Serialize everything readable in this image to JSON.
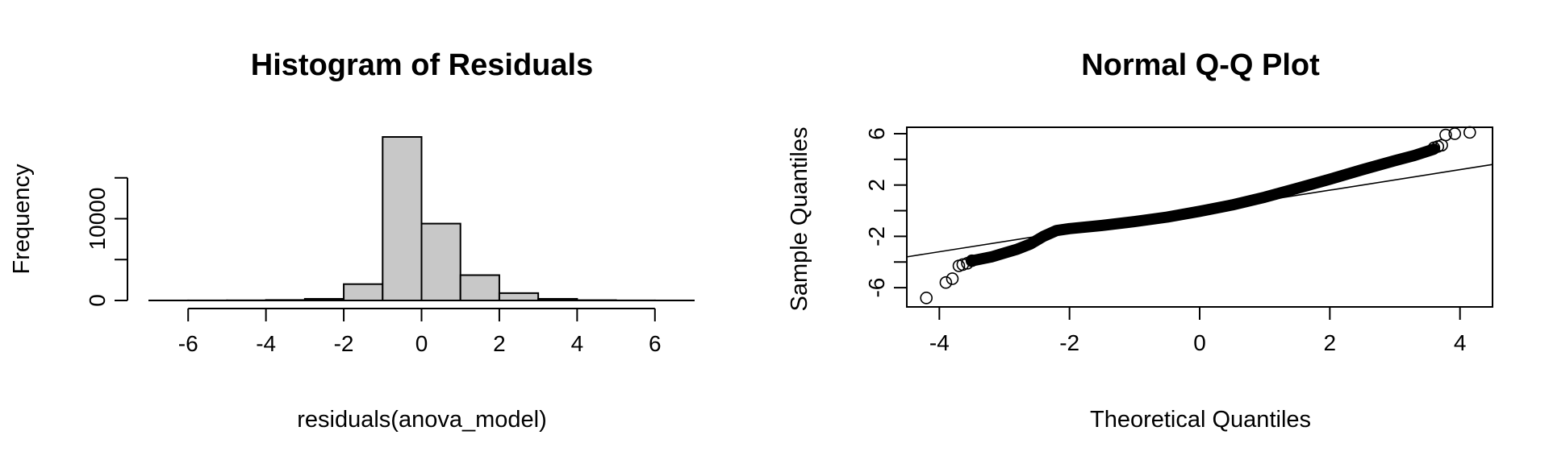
{
  "chart_data": [
    {
      "type": "bar",
      "subtype": "histogram",
      "title": "Histogram of Residuals",
      "xlabel": "residuals(anova_model)",
      "ylabel": "Frequency",
      "xlim": [
        -7,
        7
      ],
      "ylim": [
        0,
        20000
      ],
      "bin_edges": [
        -7,
        -6,
        -5,
        -4,
        -3,
        -2,
        -1,
        0,
        1,
        2,
        3,
        4,
        5,
        6,
        7
      ],
      "values": [
        5,
        10,
        20,
        60,
        200,
        2000,
        20000,
        9400,
        3100,
        900,
        200,
        40,
        10,
        5
      ],
      "x_ticks": [
        -6,
        -4,
        -2,
        0,
        2,
        4,
        6
      ],
      "x_tick_labels": [
        "-6",
        "-4",
        "-2",
        "0",
        "2",
        "4",
        "6"
      ],
      "y_ticks": [
        0,
        5000,
        10000,
        15000
      ],
      "y_tick_labels": [
        "0",
        "",
        "10000",
        ""
      ],
      "grid": false,
      "bar_color": "#c8c8c8"
    },
    {
      "type": "scatter",
      "subtype": "qq-plot",
      "title": "Normal Q-Q Plot",
      "xlabel": "Theoretical Quantiles",
      "ylabel": "Sample Quantiles",
      "xlim": [
        -4.5,
        4.5
      ],
      "ylim": [
        -7.5,
        6.5
      ],
      "x_ticks": [
        -4,
        -2,
        0,
        2,
        4
      ],
      "x_tick_labels": [
        "-4",
        "-2",
        "0",
        "2",
        "4"
      ],
      "y_ticks": [
        -6,
        -4,
        -2,
        0,
        2,
        4,
        6
      ],
      "y_tick_labels": [
        "-6",
        "",
        "-2",
        "",
        "2",
        "",
        "6"
      ],
      "reference_line": {
        "intercept": 0,
        "slope": 0.8
      },
      "curve": {
        "x": [
          -3.5,
          -3.2,
          -3.0,
          -2.8,
          -2.6,
          -2.4,
          -2.2,
          -2.0,
          -1.5,
          -1.0,
          -0.5,
          0.0,
          0.5,
          1.0,
          1.5,
          2.0,
          2.5,
          3.0,
          3.3,
          3.6
        ],
        "y": [
          -3.9,
          -3.6,
          -3.3,
          -3.0,
          -2.6,
          -2.0,
          -1.55,
          -1.4,
          -1.15,
          -0.85,
          -0.5,
          -0.05,
          0.45,
          1.05,
          1.75,
          2.45,
          3.2,
          3.9,
          4.3,
          4.8
        ]
      },
      "points": [
        {
          "x": -4.2,
          "y": -6.8
        },
        {
          "x": -3.9,
          "y": -5.6
        },
        {
          "x": -3.8,
          "y": -5.3
        },
        {
          "x": -3.7,
          "y": -4.3
        },
        {
          "x": -3.64,
          "y": -4.2
        },
        {
          "x": -3.57,
          "y": -4.1
        },
        {
          "x": -3.5,
          "y": -3.9
        },
        {
          "x": 3.6,
          "y": 4.9
        },
        {
          "x": 3.66,
          "y": 5.0
        },
        {
          "x": 3.72,
          "y": 5.1
        },
        {
          "x": 3.78,
          "y": 5.9
        },
        {
          "x": 3.92,
          "y": 6.0
        },
        {
          "x": 4.15,
          "y": 6.1
        }
      ],
      "grid": false
    }
  ]
}
